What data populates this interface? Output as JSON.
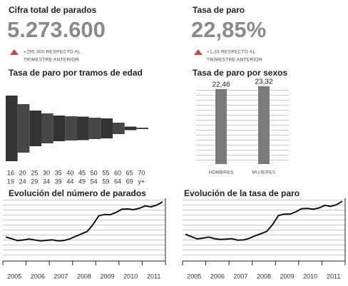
{
  "stats": [
    {
      "title": "Cifra total de parados",
      "value": "5.273.600",
      "change": [
        "+295.300 RESPECTO AL",
        "TRIMESTRE ANTERIOR"
      ]
    },
    {
      "title": "Tasa de paro",
      "value": "22,85%",
      "change": [
        "+1,33 RESPECTO AL",
        "TRIMESTRE ANTERIOR"
      ]
    }
  ],
  "chart_data": [
    {
      "type": "bar",
      "centered": true,
      "title": "Tasa de paro por tramos de edad",
      "categories": [
        [
          "16",
          "19"
        ],
        [
          "20",
          "24"
        ],
        [
          "25",
          "29"
        ],
        [
          "30",
          "34"
        ],
        [
          "35",
          "39"
        ],
        [
          "40",
          "44"
        ],
        [
          "45",
          "49"
        ],
        [
          "50",
          "54"
        ],
        [
          "55",
          "59"
        ],
        [
          "60",
          "64"
        ],
        [
          "65",
          "69"
        ],
        [
          "70",
          "y+"
        ]
      ],
      "values": [
        46,
        34,
        25,
        21,
        18,
        17,
        16.5,
        15,
        14,
        8,
        2.5,
        1
      ],
      "ylim": [
        0,
        50
      ],
      "color": "#333333"
    },
    {
      "type": "bar",
      "title": "Tasa de paro por sexos",
      "categories": [
        "HOMBRES",
        "MUJERES"
      ],
      "values": [
        22.46,
        23.32
      ],
      "value_labels": [
        "22,46",
        "23,32"
      ],
      "ylim": [
        0,
        23.5
      ],
      "color": "#7a7a7a",
      "grid": true
    },
    {
      "type": "line",
      "title": "Evolución del número de parados",
      "x": [
        2005.125,
        2005.375,
        2005.625,
        2005.875,
        2006.125,
        2006.375,
        2006.625,
        2006.875,
        2007.125,
        2007.375,
        2007.625,
        2007.875,
        2008.125,
        2008.375,
        2008.625,
        2008.875,
        2009.125,
        2009.375,
        2009.625,
        2009.875,
        2010.125,
        2010.375,
        2010.625,
        2010.875,
        2011.125,
        2011.375,
        2011.625,
        2011.875
      ],
      "values": [
        2100000,
        1960000,
        1790000,
        1840000,
        1930000,
        1840000,
        1760000,
        1810000,
        1860000,
        1760000,
        1790000,
        1930000,
        2170000,
        2380000,
        2600000,
        3210000,
        4010000,
        4140000,
        4120000,
        4330000,
        4610000,
        4640000,
        4570000,
        4700000,
        4910000,
        4830000,
        4980000,
        5273600
      ],
      "xlim": [
        2005,
        2012
      ],
      "xticks": [
        2005,
        2006,
        2007,
        2008,
        2009,
        2010,
        2011
      ],
      "ylim": [
        200000,
        5600000
      ],
      "color": "#111111",
      "grid": true
    },
    {
      "type": "line",
      "title": "Evolución de la tasa de paro",
      "x": [
        2005.125,
        2005.375,
        2005.625,
        2005.875,
        2006.125,
        2006.375,
        2006.625,
        2006.875,
        2007.125,
        2007.375,
        2007.625,
        2007.875,
        2008.125,
        2008.375,
        2008.625,
        2008.875,
        2009.125,
        2009.375,
        2009.625,
        2009.875,
        2010.125,
        2010.375,
        2010.625,
        2010.875,
        2011.125,
        2011.375,
        2011.625,
        2011.875
      ],
      "values": [
        10.2,
        9.3,
        8.4,
        8.7,
        9.1,
        8.5,
        8.2,
        8.3,
        8.5,
        7.9,
        8.0,
        8.6,
        9.6,
        10.4,
        11.3,
        13.9,
        17.4,
        17.9,
        17.9,
        18.8,
        20.0,
        20.1,
        19.8,
        20.3,
        21.3,
        20.9,
        21.5,
        22.85
      ],
      "xlim": [
        2005,
        2012
      ],
      "xticks": [
        2005,
        2006,
        2007,
        2008,
        2009,
        2010,
        2011
      ],
      "ylim": [
        1,
        24
      ],
      "color": "#111111",
      "grid": true
    }
  ]
}
